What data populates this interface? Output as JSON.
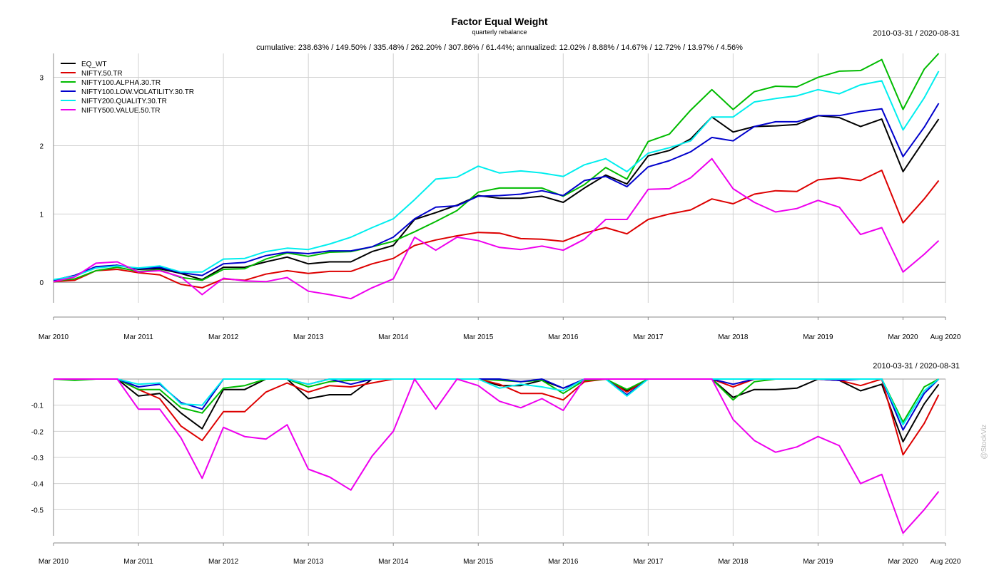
{
  "title": "Factor Equal Weight",
  "subtitle": "quarterly rebalance",
  "summary": "cumulative: 238.63% / 149.50% / 335.48% / 262.20% / 307.86% / 61.44%; annualized: 12.02% / 8.88% / 14.67% / 12.72% / 13.97% / 4.56%",
  "date_range_top": "2010-03-31 / 2020-08-31",
  "date_range_bottom": "2010-03-31 / 2020-08-31",
  "credit": "@StockViz",
  "colors": {
    "EQ_WT": "#000000",
    "NIFTY.50.TR": "#dd0000",
    "NIFTY100.ALPHA.30.TR": "#00bb00",
    "NIFTY100.LOW.VOLATILITY.30.TR": "#0000cc",
    "NIFTY200.QUALITY.30.TR": "#00eeee",
    "NIFTY500.VALUE.50.TR": "#ee00ee"
  },
  "chart_data": [
    {
      "type": "line",
      "title": "Factor Equal Weight",
      "legend_position": "top-left",
      "grid": true,
      "ylim": [
        -0.3,
        3.35
      ],
      "xlim": [
        2010.0,
        2020.5
      ],
      "x_tick_labels": [
        "Mar 2010",
        "Mar 2011",
        "Mar 2012",
        "Mar 2013",
        "Mar 2014",
        "Mar 2015",
        "Mar 2016",
        "Mar 2017",
        "Mar 2018",
        "Mar 2019",
        "Mar 2020",
        "Aug 2020"
      ],
      "x_tick_values": [
        2010.0,
        2011.0,
        2012.0,
        2013.0,
        2014.0,
        2015.0,
        2016.0,
        2017.0,
        2018.0,
        2019.0,
        2020.0,
        2020.5
      ],
      "y_ticks": [
        0,
        1,
        2,
        3
      ],
      "y_tick_labels": [
        "0",
        "1",
        "2",
        "3"
      ],
      "x": [
        2010.0,
        2010.25,
        2010.5,
        2010.75,
        2011.0,
        2011.25,
        2011.5,
        2011.75,
        2012.0,
        2012.25,
        2012.5,
        2012.75,
        2013.0,
        2013.25,
        2013.5,
        2013.75,
        2014.0,
        2014.25,
        2014.5,
        2014.75,
        2015.0,
        2015.25,
        2015.5,
        2015.75,
        2016.0,
        2016.25,
        2016.5,
        2016.75,
        2017.0,
        2017.25,
        2017.5,
        2017.75,
        2018.0,
        2018.25,
        2018.5,
        2018.75,
        2019.0,
        2019.25,
        2019.5,
        2019.75,
        2020.0,
        2020.25,
        2020.42
      ],
      "series": [
        {
          "name": "EQ_WT",
          "values": [
            0.03,
            0.1,
            0.22,
            0.25,
            0.19,
            0.2,
            0.13,
            0.04,
            0.22,
            0.22,
            0.3,
            0.37,
            0.27,
            0.3,
            0.3,
            0.45,
            0.54,
            0.92,
            1.02,
            1.13,
            1.27,
            1.23,
            1.23,
            1.26,
            1.17,
            1.38,
            1.57,
            1.44,
            1.85,
            1.93,
            2.1,
            2.42,
            2.2,
            2.28,
            2.29,
            2.31,
            2.44,
            2.41,
            2.28,
            2.39,
            1.62,
            2.08,
            2.39
          ]
        },
        {
          "name": "NIFTY.50.TR",
          "values": [
            0.01,
            0.03,
            0.17,
            0.19,
            0.14,
            0.11,
            -0.03,
            -0.08,
            0.05,
            0.03,
            0.12,
            0.17,
            0.13,
            0.16,
            0.16,
            0.27,
            0.35,
            0.54,
            0.62,
            0.68,
            0.73,
            0.72,
            0.64,
            0.63,
            0.6,
            0.72,
            0.8,
            0.71,
            0.92,
            1.0,
            1.06,
            1.22,
            1.15,
            1.29,
            1.34,
            1.33,
            1.5,
            1.53,
            1.49,
            1.64,
            0.87,
            1.22,
            1.49
          ]
        },
        {
          "name": "NIFTY100.ALPHA.30.TR",
          "values": [
            0.02,
            0.05,
            0.17,
            0.22,
            0.16,
            0.18,
            0.07,
            0.03,
            0.19,
            0.2,
            0.34,
            0.43,
            0.38,
            0.44,
            0.45,
            0.52,
            0.6,
            0.74,
            0.89,
            1.05,
            1.32,
            1.38,
            1.38,
            1.38,
            1.26,
            1.43,
            1.68,
            1.51,
            2.06,
            2.17,
            2.52,
            2.82,
            2.53,
            2.79,
            2.87,
            2.86,
            3.0,
            3.09,
            3.1,
            3.26,
            2.53,
            3.12,
            3.35
          ]
        },
        {
          "name": "NIFTY100.LOW.VOLATILITY.30.TR",
          "values": [
            0.03,
            0.1,
            0.23,
            0.25,
            0.2,
            0.22,
            0.14,
            0.1,
            0.27,
            0.29,
            0.39,
            0.44,
            0.42,
            0.46,
            0.46,
            0.52,
            0.66,
            0.93,
            1.1,
            1.12,
            1.26,
            1.27,
            1.29,
            1.34,
            1.27,
            1.49,
            1.55,
            1.4,
            1.69,
            1.78,
            1.91,
            2.12,
            2.07,
            2.28,
            2.35,
            2.35,
            2.44,
            2.44,
            2.5,
            2.54,
            1.84,
            2.27,
            2.62
          ]
        },
        {
          "name": "NIFTY200.QUALITY.30.TR",
          "values": [
            0.04,
            0.09,
            0.21,
            0.24,
            0.21,
            0.24,
            0.15,
            0.15,
            0.34,
            0.35,
            0.45,
            0.5,
            0.48,
            0.56,
            0.66,
            0.8,
            0.93,
            1.21,
            1.51,
            1.54,
            1.7,
            1.6,
            1.63,
            1.6,
            1.55,
            1.72,
            1.81,
            1.62,
            1.89,
            1.97,
            2.07,
            2.42,
            2.42,
            2.64,
            2.69,
            2.73,
            2.82,
            2.76,
            2.89,
            2.95,
            2.23,
            2.7,
            3.09
          ]
        },
        {
          "name": "NIFTY500.VALUE.50.TR",
          "values": [
            0.01,
            0.08,
            0.28,
            0.3,
            0.15,
            0.17,
            0.08,
            -0.18,
            0.06,
            0.02,
            0.01,
            0.07,
            -0.13,
            -0.18,
            -0.24,
            -0.08,
            0.05,
            0.66,
            0.47,
            0.66,
            0.61,
            0.51,
            0.48,
            0.53,
            0.47,
            0.63,
            0.92,
            0.92,
            1.36,
            1.37,
            1.53,
            1.81,
            1.37,
            1.17,
            1.03,
            1.08,
            1.2,
            1.1,
            0.7,
            0.8,
            0.15,
            0.41,
            0.61
          ]
        }
      ]
    },
    {
      "type": "line",
      "title": "",
      "grid": true,
      "ylim": [
        -0.6,
        0.0
      ],
      "xlim": [
        2010.0,
        2020.5
      ],
      "x_tick_labels": [
        "Mar 2010",
        "Mar 2011",
        "Mar 2012",
        "Mar 2013",
        "Mar 2014",
        "Mar 2015",
        "Mar 2016",
        "Mar 2017",
        "Mar 2018",
        "Mar 2019",
        "Mar 2020",
        "Aug 2020"
      ],
      "x_tick_values": [
        2010.0,
        2011.0,
        2012.0,
        2013.0,
        2014.0,
        2015.0,
        2016.0,
        2017.0,
        2018.0,
        2019.0,
        2020.0,
        2020.5
      ],
      "y_ticks": [
        -0.1,
        -0.2,
        -0.3,
        -0.4,
        -0.5
      ],
      "y_tick_labels": [
        "-0.1",
        "-0.2",
        "-0.3",
        "-0.4",
        "-0.5"
      ],
      "x": [
        2010.0,
        2010.25,
        2010.5,
        2010.75,
        2011.0,
        2011.25,
        2011.5,
        2011.75,
        2012.0,
        2012.25,
        2012.5,
        2012.75,
        2013.0,
        2013.25,
        2013.5,
        2013.75,
        2014.0,
        2014.25,
        2014.5,
        2014.75,
        2015.0,
        2015.25,
        2015.5,
        2015.75,
        2016.0,
        2016.25,
        2016.5,
        2016.75,
        2017.0,
        2017.25,
        2017.5,
        2017.75,
        2018.0,
        2018.25,
        2018.5,
        2018.75,
        2019.0,
        2019.25,
        2019.5,
        2019.75,
        2020.0,
        2020.25,
        2020.42
      ],
      "series": [
        {
          "name": "EQ_WT",
          "values": [
            0,
            0,
            0,
            0,
            -0.065,
            -0.055,
            -0.13,
            -0.19,
            -0.04,
            -0.04,
            0,
            0,
            -0.075,
            -0.06,
            -0.06,
            0,
            0,
            0,
            0,
            0,
            0,
            -0.025,
            -0.025,
            -0.005,
            -0.035,
            -0.005,
            0,
            -0.045,
            0,
            0,
            0,
            0,
            -0.07,
            -0.04,
            -0.04,
            -0.035,
            0,
            -0.005,
            -0.045,
            -0.02,
            -0.24,
            -0.095,
            -0.02
          ]
        },
        {
          "name": "NIFTY.50.TR",
          "values": [
            0,
            0,
            0,
            0,
            -0.04,
            -0.075,
            -0.18,
            -0.235,
            -0.125,
            -0.125,
            -0.05,
            -0.015,
            -0.05,
            -0.025,
            -0.03,
            -0.015,
            0,
            0,
            0,
            0,
            0,
            -0.02,
            -0.055,
            -0.055,
            -0.08,
            -0.01,
            0,
            -0.05,
            0,
            0,
            0,
            0,
            -0.03,
            0,
            0,
            0,
            0,
            -0.005,
            -0.025,
            0,
            -0.29,
            -0.17,
            -0.06
          ]
        },
        {
          "name": "NIFTY100.ALPHA.30.TR",
          "values": [
            0,
            -0.005,
            0,
            0,
            -0.04,
            -0.04,
            -0.11,
            -0.13,
            -0.035,
            -0.025,
            0,
            0,
            -0.03,
            -0.01,
            -0.005,
            0,
            0,
            0,
            0,
            0,
            0,
            -0.005,
            -0.01,
            -0.005,
            -0.055,
            -0.005,
            0,
            -0.04,
            0,
            0,
            0,
            0,
            -0.08,
            -0.01,
            0,
            0,
            0,
            0,
            0,
            0,
            -0.165,
            -0.03,
            0
          ]
        },
        {
          "name": "NIFTY100.LOW.VOLATILITY.30.TR",
          "values": [
            0,
            0,
            0,
            0,
            -0.03,
            -0.02,
            -0.09,
            -0.115,
            0,
            0,
            0,
            0,
            -0.02,
            0,
            -0.02,
            0,
            0,
            0,
            0,
            0,
            0,
            0,
            -0.01,
            0,
            -0.035,
            0,
            0,
            -0.06,
            0,
            0,
            0,
            0,
            -0.02,
            0,
            0,
            0,
            0,
            -0.005,
            0,
            0,
            -0.195,
            -0.055,
            0
          ]
        },
        {
          "name": "NIFTY200.QUALITY.30.TR",
          "values": [
            0,
            0,
            0,
            0,
            -0.02,
            -0.015,
            -0.095,
            -0.1,
            0,
            0,
            0,
            0,
            -0.02,
            0,
            0,
            0,
            0,
            0,
            0,
            0,
            0,
            -0.035,
            -0.02,
            -0.03,
            -0.045,
            0,
            0,
            -0.065,
            0,
            0,
            0,
            0,
            0,
            0,
            0,
            0,
            0,
            0,
            0,
            0,
            -0.175,
            -0.045,
            0
          ]
        },
        {
          "name": "NIFTY500.VALUE.50.TR",
          "values": [
            0,
            0,
            0,
            0,
            -0.115,
            -0.115,
            -0.225,
            -0.38,
            -0.185,
            -0.22,
            -0.23,
            -0.175,
            -0.345,
            -0.375,
            -0.425,
            -0.295,
            -0.2,
            0,
            -0.115,
            0,
            -0.025,
            -0.085,
            -0.11,
            -0.075,
            -0.12,
            0,
            0,
            0,
            0,
            0,
            0,
            0,
            -0.155,
            -0.235,
            -0.28,
            -0.26,
            -0.22,
            -0.255,
            -0.4,
            -0.365,
            -0.59,
            -0.5,
            -0.43
          ]
        }
      ]
    }
  ]
}
